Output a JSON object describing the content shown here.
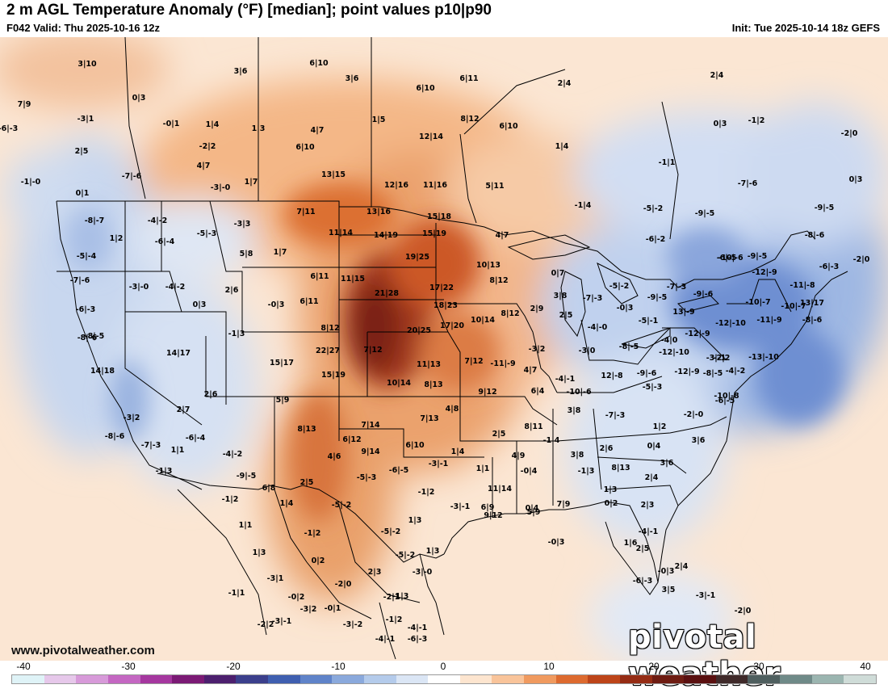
{
  "header": {
    "title": "2 m AGL Temperature Anomaly (°F) [median]; point values p10|p90",
    "valid": "F042 Valid: Thu 2025-10-16 12z",
    "init": "Init: Tue 2025-10-14 18z GEFS"
  },
  "footer": {
    "site_url": "www.pivotalweather.com",
    "watermark": "pivotal weather"
  },
  "colorbar": {
    "labels": [
      "-40",
      "-30",
      "-20",
      "-10",
      "0",
      "10",
      "20",
      "30",
      "40"
    ],
    "colors": [
      "#dff3f7",
      "#e6c8ea",
      "#d79ad9",
      "#c467c2",
      "#a5379f",
      "#7b1a75",
      "#4c1f6e",
      "#3b3f8c",
      "#3f5fb0",
      "#5f83c9",
      "#8aa9dc",
      "#b4cbeb",
      "#dbe6f5",
      "#ffffff",
      "#fde5cf",
      "#f9c49a",
      "#f09a5f",
      "#dd6a2f",
      "#bd4419",
      "#952c14",
      "#6e1c12",
      "#5a1010",
      "#3f2a2a",
      "#4f5f5f",
      "#6f8a88",
      "#9bb5b0",
      "#cfdcd8"
    ]
  },
  "map": {
    "point_values": [
      {
        "t": "3|10"
      },
      {
        "t": "3|6"
      },
      {
        "t": "6|10"
      },
      {
        "t": "3|6"
      },
      {
        "t": "6|10"
      },
      {
        "t": "6|11"
      },
      {
        "t": "2|4"
      },
      {
        "t": "2|4"
      },
      {
        "t": "7|9"
      },
      {
        "t": "0|3"
      },
      {
        "t": "-3|1"
      },
      {
        "t": "-0|1"
      },
      {
        "t": "1|4"
      },
      {
        "t": "1|3"
      },
      {
        "t": "4|7"
      },
      {
        "t": "1|5"
      },
      {
        "t": "8|12"
      },
      {
        "t": "6|10"
      },
      {
        "t": "0|3"
      },
      {
        "t": "-1|2"
      },
      {
        "t": "-2|0"
      },
      {
        "t": "2|5"
      },
      {
        "t": "-2|2"
      },
      {
        "t": "6|10"
      },
      {
        "t": "12|14"
      },
      {
        "t": "1|4"
      },
      {
        "t": "-7|-6"
      },
      {
        "t": "4|7"
      },
      {
        "t": "13|15"
      },
      {
        "t": "-1|1"
      },
      {
        "t": "-1|-0"
      },
      {
        "t": "-3|-0"
      },
      {
        "t": "1|7"
      },
      {
        "t": "12|16"
      },
      {
        "t": "11|16"
      },
      {
        "t": "5|11"
      },
      {
        "t": "-7|-6"
      },
      {
        "t": "0|3"
      },
      {
        "t": "0|1"
      },
      {
        "t": "-8|-7"
      },
      {
        "t": "-4|-2"
      },
      {
        "t": "7|11"
      },
      {
        "t": "13|16"
      },
      {
        "t": "15|18"
      },
      {
        "t": "-1|4"
      },
      {
        "t": "-5|-2"
      },
      {
        "t": "-9|-5"
      },
      {
        "t": "-9|-5"
      },
      {
        "t": "-5|-3"
      },
      {
        "t": "-3|3"
      },
      {
        "t": "11|14"
      },
      {
        "t": "14|19"
      },
      {
        "t": "15|19"
      },
      {
        "t": "4|7"
      },
      {
        "t": "-8|-6"
      },
      {
        "t": "1|2"
      },
      {
        "t": "-6|-4"
      },
      {
        "t": "-6|-3"
      },
      {
        "t": "-6|-3"
      },
      {
        "t": "-5|-4"
      },
      {
        "t": "5|8"
      },
      {
        "t": "1|7"
      },
      {
        "t": "19|25"
      },
      {
        "t": "10|13"
      },
      {
        "t": "-6|-5"
      },
      {
        "t": "-10|-6"
      },
      {
        "t": "-9|-5"
      },
      {
        "t": "-6|-2"
      },
      {
        "t": "-2|0"
      },
      {
        "t": "-7|-6"
      },
      {
        "t": "-3|-0"
      },
      {
        "t": "-4|-2"
      },
      {
        "t": "2|6"
      },
      {
        "t": "6|11"
      },
      {
        "t": "11|15"
      },
      {
        "t": "17|22"
      },
      {
        "t": "8|12"
      },
      {
        "t": "0|7"
      },
      {
        "t": "-5|-2"
      },
      {
        "t": "-7|-3"
      },
      {
        "t": "-12|-9"
      },
      {
        "t": "-11|-8"
      },
      {
        "t": "-6|-3"
      },
      {
        "t": "0|3"
      },
      {
        "t": "-0|3"
      },
      {
        "t": "6|11"
      },
      {
        "t": "21|28"
      },
      {
        "t": "3|8"
      },
      {
        "t": "-7|-3"
      },
      {
        "t": "-9|-5"
      },
      {
        "t": "-9|-6"
      },
      {
        "t": "-10|-7"
      },
      {
        "t": "-10|-7"
      },
      {
        "t": "18|23"
      },
      {
        "t": "2|9"
      },
      {
        "t": "-0|3"
      },
      {
        "t": "13|-9"
      },
      {
        "t": "-8|-6"
      },
      {
        "t": "-1|3"
      },
      {
        "t": "8|12"
      },
      {
        "t": "20|25"
      },
      {
        "t": "17|20"
      },
      {
        "t": "10|14"
      },
      {
        "t": "8|12"
      },
      {
        "t": "2|5"
      },
      {
        "t": "-4|-0"
      },
      {
        "t": "-5|-1"
      },
      {
        "t": "-12|-9"
      },
      {
        "t": "-12|-10"
      },
      {
        "t": "-11|-9"
      },
      {
        "t": "-8|-6"
      },
      {
        "t": "-8|-5"
      },
      {
        "t": "-4|0"
      },
      {
        "t": "14|17"
      },
      {
        "t": "22|27"
      },
      {
        "t": "7|12"
      },
      {
        "t": "-3|2"
      },
      {
        "t": "-3|0"
      },
      {
        "t": "-8|-5"
      },
      {
        "t": "-12|-10"
      },
      {
        "t": "-2|2"
      },
      {
        "t": "14|18"
      },
      {
        "t": "15|17"
      },
      {
        "t": "11|13"
      },
      {
        "t": "7|12"
      },
      {
        "t": "-11|-9"
      },
      {
        "t": "-3|-1"
      },
      {
        "t": "-13|-10"
      },
      {
        "t": "-4|-2"
      },
      {
        "t": "13|17"
      },
      {
        "t": "15|19"
      },
      {
        "t": "10|14"
      },
      {
        "t": "8|13"
      },
      {
        "t": "4|7"
      },
      {
        "t": "-4|-1"
      },
      {
        "t": "12|-8"
      },
      {
        "t": "-9|-6"
      },
      {
        "t": "-12|-9"
      },
      {
        "t": "-8|-5"
      },
      {
        "t": "-5|-3"
      },
      {
        "t": "2|6"
      },
      {
        "t": "5|9"
      },
      {
        "t": "9|12"
      },
      {
        "t": "6|4"
      },
      {
        "t": "-10|-6"
      },
      {
        "t": "-10|-8"
      },
      {
        "t": "-3|2"
      },
      {
        "t": "2|7"
      },
      {
        "t": "4|8"
      },
      {
        "t": "7|13"
      },
      {
        "t": "7|14"
      },
      {
        "t": "3|8"
      },
      {
        "t": "-7|-3"
      },
      {
        "t": "-2|-0"
      },
      {
        "t": "-6|-5"
      },
      {
        "t": "-8|-6"
      },
      {
        "t": "-6|-4"
      },
      {
        "t": "8|13"
      },
      {
        "t": "6|12"
      },
      {
        "t": "2|5"
      },
      {
        "t": "8|11"
      },
      {
        "t": "1|2"
      },
      {
        "t": "-7|-3"
      },
      {
        "t": "1|1"
      },
      {
        "t": "-4|-2"
      },
      {
        "t": "4|6"
      },
      {
        "t": "9|14"
      },
      {
        "t": "6|10"
      },
      {
        "t": "1|4"
      },
      {
        "t": "-1|4"
      },
      {
        "t": "2|6"
      },
      {
        "t": "0|4"
      },
      {
        "t": "3|6"
      },
      {
        "t": "-1|3"
      },
      {
        "t": "-9|-5"
      },
      {
        "t": "-5|-3"
      },
      {
        "t": "-6|-5"
      },
      {
        "t": "-3|-1"
      },
      {
        "t": "4|9"
      },
      {
        "t": "3|8"
      },
      {
        "t": "8|13"
      },
      {
        "t": "3|6"
      },
      {
        "t": "6|8"
      },
      {
        "t": "2|5"
      },
      {
        "t": "-1|2"
      },
      {
        "t": "1|1"
      },
      {
        "t": "11|14"
      },
      {
        "t": "-0|4"
      },
      {
        "t": "-1|3"
      },
      {
        "t": "1|3"
      },
      {
        "t": "2|4"
      },
      {
        "t": "-1|2"
      },
      {
        "t": "1|4"
      },
      {
        "t": "-5|-2"
      },
      {
        "t": "-3|-1"
      },
      {
        "t": "6|9"
      },
      {
        "t": "5|9"
      },
      {
        "t": "7|9"
      },
      {
        "t": "0|2"
      },
      {
        "t": "2|3"
      },
      {
        "t": "1|1"
      },
      {
        "t": "-1|2"
      },
      {
        "t": "-5|-2"
      },
      {
        "t": "1|3"
      },
      {
        "t": "9|12"
      },
      {
        "t": "-0|3"
      },
      {
        "t": "0|4"
      },
      {
        "t": "-4|-1"
      },
      {
        "t": "1|3"
      },
      {
        "t": "0|2"
      },
      {
        "t": "2|3"
      },
      {
        "t": "1|3"
      },
      {
        "t": "1|6"
      },
      {
        "t": "2|5"
      },
      {
        "t": "-0|3"
      },
      {
        "t": "3|5"
      },
      {
        "t": "-3|1"
      },
      {
        "t": "-5|-2"
      },
      {
        "t": "-3|-0"
      },
      {
        "t": "-1|3"
      },
      {
        "t": "-3|-1"
      },
      {
        "t": "2|4"
      },
      {
        "t": "-6|-3"
      },
      {
        "t": "-2|0"
      },
      {
        "t": "-1|1"
      },
      {
        "t": "-0|2"
      },
      {
        "t": "-1|2"
      },
      {
        "t": "-2|0"
      },
      {
        "t": "-3|-1"
      },
      {
        "t": "-3|2"
      },
      {
        "t": "-2|2"
      },
      {
        "t": "-0|1"
      },
      {
        "t": "-2|1"
      },
      {
        "t": "-3|-2"
      },
      {
        "t": "-4|-1"
      },
      {
        "t": "-4|-1"
      },
      {
        "t": "-6|-3"
      }
    ]
  }
}
